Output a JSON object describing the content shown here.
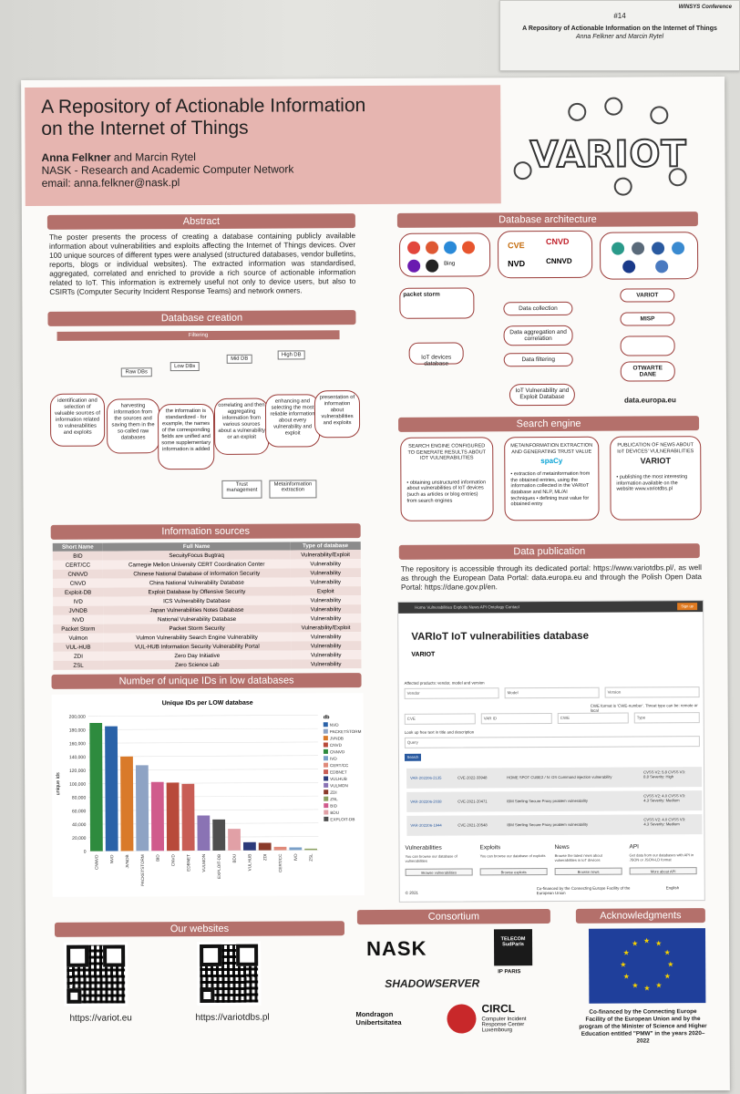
{
  "wall_card": {
    "conference": "WINSYS Conference",
    "number": "#14",
    "title": "A Repository of Actionable Information on the Internet of Things",
    "authors": "Anna Felkner and Marcin Rytel"
  },
  "header": {
    "title_line1": "A Repository of Actionable Information",
    "title_line2": "on the Internet of Things",
    "author_bold": "Anna Felkner",
    "author_rest": " and Marcin Rytel",
    "institution": "NASK - Research and Academic Computer Network",
    "email": "email: anna.felkner@nask.pl",
    "logo_text": "VARIOT"
  },
  "abstract": {
    "heading": "Abstract",
    "text": "The poster presents the process of creating a database containing publicly available information about vulnerabilities and exploits affecting the Internet of Things devices. Over 100 unique sources of different types were analysed (structured databases, vendor bulletins, reports, blogs or individual websites). The extracted information was standardised, aggregated, correlated and enriched to provide a rich source of actionable information related to IoT. This information is extremely useful not only to device users, but also to CSIRTs (Computer Security Incident Response Teams) and network owners."
  },
  "database_creation": {
    "heading": "Database creation",
    "filtering": "Filtering",
    "levels": [
      "Raw DBs",
      "Low DBs",
      "Mid DB",
      "High DB"
    ],
    "steps": [
      "identification and selection of valuable sources of information related to vulnerabilities and exploits",
      "harvesting information from the sources and saving them in the so-called raw databases",
      "the information is standardized - for example, the names of the corresponding fields are unified and some supplementary information is added",
      "correlating and then aggregating information from various sources about a vulnerability or an exploit",
      "enhancing and selecting the most reliable information about every vulnerability and exploit",
      "presentation of information about vulnerabilities and exploits"
    ],
    "trust": "Trust management",
    "meta": "Metainformation extraction"
  },
  "information_sources": {
    "heading": "Information sources",
    "columns": [
      "Short Name",
      "Full Name",
      "Type of database"
    ],
    "rows": [
      [
        "BID",
        "SecuityFocus Bugtraq",
        "Vulnerability/Exploit"
      ],
      [
        "CERT/CC",
        "Carnegie Mellon University CERT Coordination Center",
        "Vulnerability"
      ],
      [
        "CNNVD",
        "Chinese National Database of Information Security",
        "Vulnerability"
      ],
      [
        "CNVD",
        "China National Vulnerability Database",
        "Vulnerability"
      ],
      [
        "Exploit-DB",
        "Exploit Database by Offensive Security",
        "Exploit"
      ],
      [
        "IVD",
        "ICS Vulnerability Database",
        "Vulnerability"
      ],
      [
        "JVNDB",
        "Japan Vulnerabilities Notes Database",
        "Vulnerability"
      ],
      [
        "NVD",
        "National Vulnerability Database",
        "Vulnerability"
      ],
      [
        "Packet Storm",
        "Packet Storm Security",
        "Vulnerability/Exploit"
      ],
      [
        "Vulmon",
        "Vulmon Vulnerability Search Engine Vulnerability",
        "Vulnerability"
      ],
      [
        "VUL-HUB",
        "VUL-HUB Information Security Vulnerability Portal",
        "Vulnerability"
      ],
      [
        "ZDI",
        "Zero Day Initiative",
        "Vulnerability"
      ],
      [
        "ZSL",
        "Zero Science Lab",
        "Vulnerability"
      ]
    ]
  },
  "ids_section": {
    "heading": "Number of unique IDs in low databases"
  },
  "chart_data": {
    "type": "bar",
    "title": "Unique IDs per LOW database",
    "ylabel": "unique ids",
    "xlabel": "",
    "ylim": [
      0,
      200000
    ],
    "yticks": [
      "0",
      "20,000",
      "40,000",
      "60,000",
      "80,000",
      "100,000",
      "120,000",
      "140,000",
      "160,000",
      "180,000",
      "200,000"
    ],
    "legend_title": "db",
    "legend": [
      "NVD",
      "PACKETSTORM",
      "JVNDB",
      "CNVD",
      "CNNVD",
      "IVD",
      "CERT/CC",
      "EDBNET",
      "VULHUB",
      "VULMON",
      "ZDI",
      "ZSL",
      "BID",
      "BDU",
      "EXPLOIT-DB"
    ],
    "categories": [
      "CNNVD",
      "NVD",
      "JVNDB",
      "PACKETSTORM",
      "BID",
      "CNVD",
      "EDBNET",
      "VULMON",
      "EXPLOIT-DB",
      "BDU",
      "VULHUB",
      "ZDI",
      "CERT/CC",
      "IVD",
      "ZSL"
    ],
    "values": [
      190000,
      185000,
      140000,
      127000,
      102000,
      101000,
      99000,
      52000,
      46000,
      32000,
      12000,
      11000,
      5000,
      4000,
      2000
    ],
    "colors": [
      "#2e8b3e",
      "#2a62a8",
      "#d97a2a",
      "#8ea3c4",
      "#d05b8c",
      "#b84a3a",
      "#c85d55",
      "#8a73b4",
      "#4f4f4f",
      "#e1a0a6",
      "#2c3a7a",
      "#8a3a2a",
      "#e08a7a",
      "#7aa0c8",
      "#8aa060"
    ]
  },
  "websites": {
    "heading": "Our websites",
    "url1": "https://variot.eu",
    "url2": "https://variotdbs.pl"
  },
  "architecture": {
    "heading": "Database architecture",
    "source_labels": [
      "CVE",
      "CNVD",
      "NVD",
      "CNNVD",
      "Bing"
    ],
    "packet_storm": "packet storm",
    "steps": [
      "Data collection",
      "Data aggregation and correlation",
      "Data filtering",
      "IoT Vulnerability and Exploit Database"
    ],
    "iot_db": "IoT devices database",
    "outputs": [
      "VARIOT",
      "MISP",
      "OTWARTE DANE"
    ],
    "data_europa": "data.europa.eu"
  },
  "search_engine": {
    "heading": "Search engine",
    "box1_title": "SEARCH ENGINE CONFIGURED TO GENERATE RESULTS ABOUT IOT VULNERABILITIES",
    "box1_text": "• obtaining unstructured information about vulnerabilities of IoT devices (such as articles or blog entries) from search engines",
    "box2_title": "METAINFORMATION EXTRACTION AND GENERATING TRUST VALUE",
    "box2_text": "• extraction of metainformation from the obtained entries, using the information collected in the VARIoT database and NLP, ML/AI techniques • defining trust value for obtained entry",
    "box2_logo": "spaCy",
    "box3_title": "PUBLICATION OF NEWS ABOUT IoT DEVICES' VULNERABILITIES",
    "box3_text": "• publishing the most interesting information available on the website www.variotdbs.pl"
  },
  "publication": {
    "heading": "Data publication",
    "text": "The repository is accessible through its dedicated portal: https://www.variotdbs.pl/, as well as through the European Data Portal: data.europa.eu and through the Polish Open Data Portal: https://dane.gov.pl/en."
  },
  "portal": {
    "nav": "Home   Vulnerabilities   Exploits   News   API   Ontology   Contact",
    "signup": "Sign up",
    "title": "VARIoT IoT vulnerabilities database",
    "affected": "Affected products: vendor, model and version",
    "vendor": "Vendor",
    "model": "Model",
    "version": "Version",
    "cwe_note": "CWE format is 'CWE-number'. Threat type can be: remote or local",
    "cve": "CVE",
    "var_id": "VAR ID",
    "cwe": "CWE",
    "type": "Type",
    "lookup": "Look up free text in title and description",
    "query": "Query",
    "search": "Search",
    "rows": [
      {
        "id": "VAR-202206-2135",
        "cve": "CVE-2022-33948",
        "title": "HOME SPOT CUBE2 / N: OS Command injection vulnerability",
        "score": "CVSS V2: 5.8  CVSS V3: 8.8  Severity: High"
      },
      {
        "id": "VAR-202206-2038",
        "cve": "CVE-2021-20471",
        "title": "IBM Sterling Secure Proxy problem vulnerability",
        "score": "CVSS V2: 4.0  CVSS V3: 4.3  Severity: Medium"
      },
      {
        "id": "VAR-202206-1944",
        "cve": "CVE-2021-20548",
        "title": "IBM Sterling Secure Proxy problem vulnerability",
        "score": "CVSS V2: 4.0  CVSS V3: 4.3  Severity: Medium"
      }
    ],
    "cols": [
      {
        "title": "Vulnerabilities",
        "text": "You can browse our database of vulnerabilities",
        "btn": "Browse vulnerabilities"
      },
      {
        "title": "Exploits",
        "text": "You can browse our database of exploits",
        "btn": "Browse exploits"
      },
      {
        "title": "News",
        "text": "Browse the latest news about vulnerabilities in IoT devices",
        "btn": "Browse news"
      },
      {
        "title": "API",
        "text": "Get data from our databases with API in JSON or JSON-LD format",
        "btn": "More about API"
      }
    ],
    "copyright": "© 2021",
    "cef": "Co-financed by the Connecting Europe Facility of the European Union",
    "lang": "English"
  },
  "consortium": {
    "heading": "Consortium",
    "members": [
      "NASK",
      "TELECOM SudParis",
      "IP PARIS",
      "SHADOWSERVER",
      "Mondragon Unibertsitatea",
      "CIRCL",
      "Computer Incident Response Center Luxembourg"
    ]
  },
  "acknowledgments": {
    "heading": "Acknowledgments",
    "text": "Co-financed by the Connecting Europe Facility of the European Union and by the program of the Minister of Science and Higher Education entitled \"PMW\" in the years 2020–2022"
  }
}
